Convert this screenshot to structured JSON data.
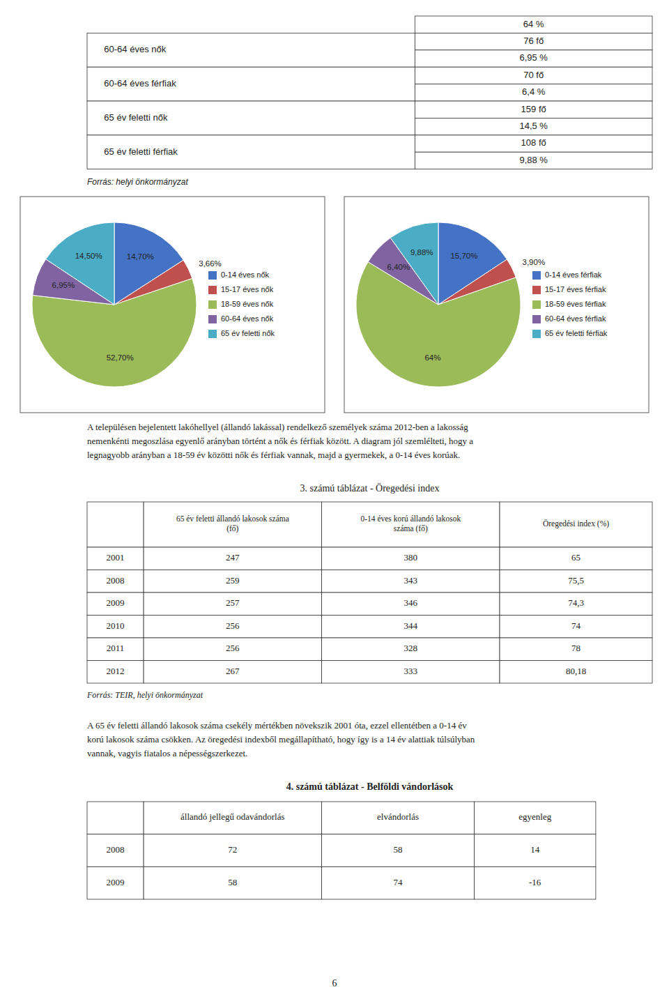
{
  "chart_data": [
    {
      "type": "pie",
      "categories": [
        "0-14 éves nők",
        "15-17 éves nők",
        "18-59 éves nők",
        "60-64 éves nők",
        "65 év feletti nők"
      ],
      "values": [
        14.7,
        3.66,
        52.7,
        6.95,
        14.5
      ],
      "value_labels": [
        "14,70%",
        "3,66%",
        "52,70%",
        "6,95%",
        "14,50%"
      ],
      "colors": [
        "#4472C4",
        "#C0504D",
        "#9BBB59",
        "#8064A2",
        "#4BACC6"
      ],
      "data_labels": true,
      "legend": "right"
    },
    {
      "type": "pie",
      "categories": [
        "0-14 éves férfiak",
        "15-17 éves férfiak",
        "18-59 éves férfiak",
        "60-64 éves férfiak",
        "65 év feletti férfiak"
      ],
      "values": [
        15.7,
        3.9,
        64.0,
        6.4,
        9.88
      ],
      "value_labels": [
        "15,70%",
        "3,90%",
        "64%",
        "6,40%",
        "9,88%"
      ],
      "colors": [
        "#4472C4",
        "#C0504D",
        "#9BBB59",
        "#8064A2",
        "#4BACC6"
      ],
      "data_labels": true,
      "legend": "right"
    }
  ],
  "top_table": {
    "top_right_value": "64 %",
    "rows": [
      [
        "60-64 éves nők",
        "76 fő",
        "6,95 %"
      ],
      [
        "60-64 éves férfiak",
        "70 fő",
        "6,4 %"
      ],
      [
        "65 év feletti nők",
        "159 fő",
        "14,5 %"
      ],
      [
        "65 év feletti férfiak",
        "108 fő",
        "9,88 %"
      ]
    ],
    "source": "Forrás: helyi önkormányzat"
  },
  "paragraph1": [
    "A településen bejelentett lakóhellyel (állandó lakással) rendelkező személyek száma 2012-ben a lakosság",
    "nemenkénti megoszlása egyenlő arányban történt a nők és férfiak között. A diagram jól szemlélteti, hogy a",
    "legnagyobb arányban a 18-59 év közötti nők és férfiak vannak, majd a gyermekek, a 0-14 éves korúak."
  ],
  "table3": {
    "title": "3. számú táblázat - Öregedési index",
    "headers": [
      null,
      "65 év feletti állandó lakosok száma\n(fő)",
      "0-14 éves korú állandó lakosok\nszáma (fő)",
      "Öregedési index (%)"
    ],
    "rows": [
      [
        "2001",
        "247",
        "380",
        "65"
      ],
      [
        "2008",
        "259",
        "343",
        "75,5"
      ],
      [
        "2009",
        "257",
        "346",
        "74,3"
      ],
      [
        "2010",
        "256",
        "344",
        "74"
      ],
      [
        "2011",
        "256",
        "328",
        "78"
      ],
      [
        "2012",
        "267",
        "333",
        "80,18"
      ]
    ],
    "source": "Forrás: TEIR, helyi önkormányzat"
  },
  "paragraph2": [
    "A 65 év feletti állandó lakosok száma csekély mértékben növekszik 2001 óta, ezzel ellentétben a 0-14 év",
    "korú lakosok száma csökken. Az öregedési indexből megállapítható, hogy így is a 14 év alattiak túlsúlyban",
    "vannak, vagyis fiatalos a népességszerkezet."
  ],
  "table4": {
    "title": "4. számú táblázat - Belföldi vándorlások",
    "headers": [
      null,
      "állandó jellegű odavándorlás",
      "elvándorlás",
      "egyenleg"
    ],
    "rows": [
      [
        "2008",
        "72",
        "58",
        "14"
      ],
      [
        "2009",
        "58",
        "74",
        "-16"
      ]
    ]
  },
  "page_number": "6"
}
